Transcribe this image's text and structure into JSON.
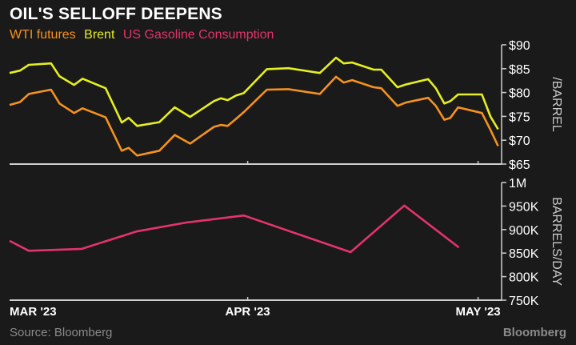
{
  "chart_data": [
    {
      "type": "line",
      "title": "OIL'S SELLOFF DEEPENS",
      "ylabel": "/BARREL",
      "ylim": [
        65,
        90
      ],
      "yticks": [
        "$90",
        "$85",
        "$80",
        "$75",
        "$70",
        "$65"
      ],
      "ytick_values": [
        90,
        85,
        80,
        75,
        70,
        65
      ],
      "x_unit": "days since Mar 1 2023",
      "x": [
        0,
        1.35,
        2.5,
        5.4,
        6.5,
        8.4,
        9.5,
        12.5,
        14.6,
        15.5,
        16.6,
        19.5,
        21.5,
        23.5,
        26.6,
        27.5,
        28.4,
        29.5,
        30.5,
        33.5,
        36.3,
        40.4,
        42.5,
        43.5,
        44.6,
        47.4,
        48.4,
        50.5,
        51.6,
        54.5,
        55.5,
        56.6,
        57.4,
        58.4,
        61.5,
        62.6,
        63.6
      ],
      "series": [
        {
          "name": "WTI futures",
          "color": "#f5921e",
          "values": [
            77.4,
            78.0,
            79.7,
            80.6,
            77.7,
            75.7,
            76.7,
            74.8,
            67.8,
            68.4,
            66.8,
            67.8,
            71.1,
            69.3,
            72.8,
            73.2,
            73.0,
            74.5,
            75.9,
            80.6,
            80.7,
            79.7,
            83.3,
            82.1,
            82.6,
            81.1,
            80.9,
            77.2,
            77.9,
            78.9,
            77.2,
            74.3,
            74.7,
            76.9,
            75.7,
            72.2,
            68.8
          ]
        },
        {
          "name": "Brent",
          "color": "#e6ef1f",
          "values": [
            84.1,
            84.6,
            85.8,
            86.1,
            83.4,
            81.6,
            82.9,
            80.9,
            73.7,
            74.7,
            73.0,
            73.8,
            76.9,
            74.9,
            78.2,
            78.8,
            78.4,
            79.4,
            79.9,
            84.9,
            85.1,
            84.1,
            87.3,
            86.1,
            86.3,
            84.8,
            84.8,
            81.1,
            81.7,
            82.8,
            80.9,
            77.7,
            78.2,
            79.6,
            79.6,
            75.0,
            72.3
          ]
        }
      ]
    },
    {
      "type": "line",
      "ylabel": "BARRELS/DAY",
      "ylim": [
        750000,
        1000000
      ],
      "yticks": [
        "1M",
        "950K",
        "900K",
        "850K",
        "800K",
        "750K"
      ],
      "ytick_values": [
        1000000,
        950000,
        900000,
        850000,
        800000,
        750000
      ],
      "x": [
        0,
        2.5,
        9.4,
        16.5,
        23,
        30.5,
        44.4,
        51.4,
        58.5
      ],
      "series": [
        {
          "name": "US Gasoline Consumption",
          "color": "#e5336b",
          "values": [
            876000,
            855000,
            859000,
            896000,
            915000,
            930000,
            852000,
            951000,
            862000
          ]
        }
      ]
    }
  ],
  "xticks": [
    {
      "label": "MAR '23",
      "day": 0
    },
    {
      "label": "APR '23",
      "day": 31
    },
    {
      "label": "MAY '23",
      "day": 61
    }
  ],
  "legend": {
    "wti": "WTI futures",
    "brent": "Brent",
    "gas": "US Gasoline Consumption"
  },
  "source": "Source: Bloomberg",
  "logo": "Bloomberg"
}
